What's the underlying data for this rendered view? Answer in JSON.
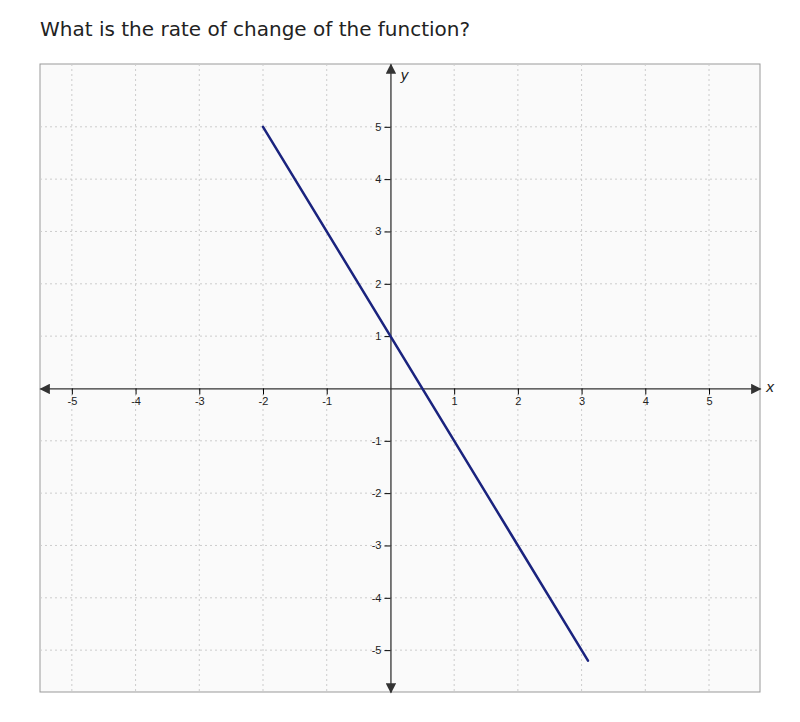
{
  "chart_data": {
    "type": "line",
    "title": "What is the rate of change of the function?",
    "x": [
      -2.0,
      3.1
    ],
    "values": [
      5,
      -5.2
    ],
    "color": "#1a237e",
    "xlabel": "x",
    "ylabel": "y",
    "xlim": [
      -5.5,
      5.8
    ],
    "ylim": [
      -5.8,
      6.2
    ],
    "xticks": [
      -5,
      -4,
      -3,
      -2,
      -1,
      1,
      2,
      3,
      4,
      5
    ],
    "yticks": [
      -5,
      -4,
      -3,
      -2,
      -1,
      1,
      2,
      3,
      4,
      5
    ],
    "grid": true
  }
}
